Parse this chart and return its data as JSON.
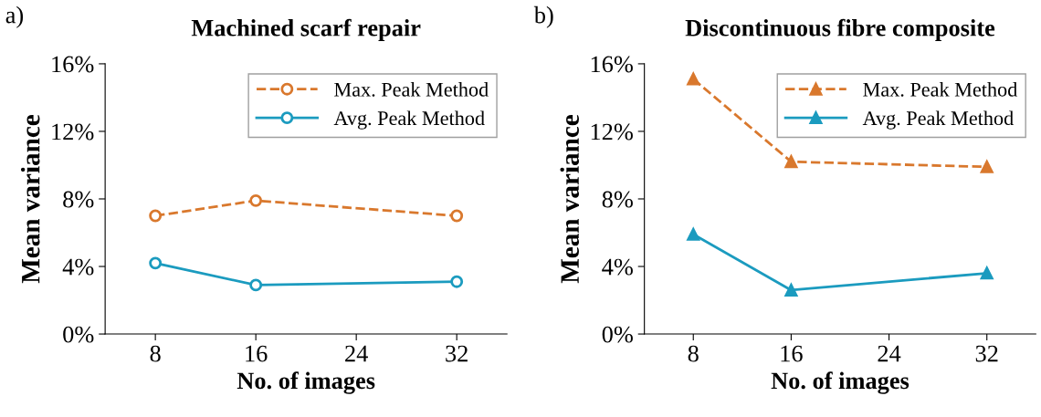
{
  "chart_data": [
    {
      "type": "line",
      "title": "Machined scarf repair",
      "xlabel": "No. of images",
      "ylabel": "Mean variance",
      "annotations": [
        "a)"
      ],
      "x": [
        8,
        16,
        32
      ],
      "xlim": [
        4,
        36
      ],
      "xticks": [
        8,
        16,
        24,
        32
      ],
      "ylim": [
        0,
        16
      ],
      "yticks": [
        {
          "value": 0,
          "label": "0%"
        },
        {
          "value": 4,
          "label": "4%"
        },
        {
          "value": 8,
          "label": "8%"
        },
        {
          "value": 12,
          "label": "12%"
        },
        {
          "value": 16,
          "label": "16%"
        }
      ],
      "grid": false,
      "legend": "top right",
      "marker": "circle",
      "series": [
        {
          "name": "Max. Peak Method",
          "color": "#d9782d",
          "line_style": "dashed",
          "values": [
            7.0,
            7.9,
            7.0
          ]
        },
        {
          "name": "Avg. Peak Method",
          "color": "#1b9bbf",
          "line_style": "solid",
          "values": [
            4.2,
            2.9,
            3.1
          ]
        }
      ]
    },
    {
      "type": "line",
      "title": "Discontinuous fibre composite",
      "xlabel": "No. of images",
      "ylabel": "Mean variance",
      "annotations": [
        "b)"
      ],
      "x": [
        8,
        16,
        32
      ],
      "xlim": [
        4,
        36
      ],
      "xticks": [
        8,
        16,
        24,
        32
      ],
      "ylim": [
        0,
        16
      ],
      "yticks": [
        {
          "value": 0,
          "label": "0%"
        },
        {
          "value": 4,
          "label": "4%"
        },
        {
          "value": 8,
          "label": "8%"
        },
        {
          "value": 12,
          "label": "12%"
        },
        {
          "value": 16,
          "label": "16%"
        }
      ],
      "grid": false,
      "legend": "top right",
      "marker": "triangle",
      "series": [
        {
          "name": "Max. Peak Method",
          "color": "#d9782d",
          "line_style": "dashed",
          "values": [
            15.1,
            10.2,
            9.9
          ]
        },
        {
          "name": "Avg. Peak Method",
          "color": "#1b9bbf",
          "line_style": "solid",
          "values": [
            5.9,
            2.6,
            3.6
          ]
        }
      ]
    }
  ]
}
